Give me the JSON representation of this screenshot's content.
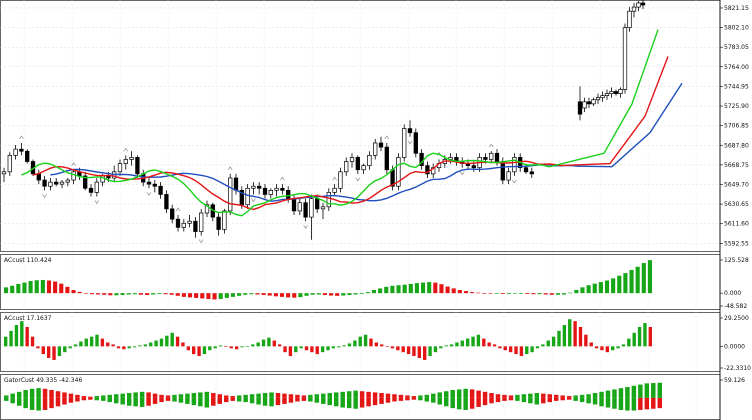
{
  "chart_data": [
    {
      "type": "candlestick",
      "pane": "main",
      "title": "",
      "y_ticks": [
        "5821.15",
        "5802.10",
        "5783.05",
        "5764.00",
        "5744.95",
        "5725.90",
        "5706.85",
        "5687.80",
        "5668.75",
        "5649.70",
        "5630.65",
        "5611.60",
        "5592.55"
      ],
      "ylim": [
        5588,
        5825
      ],
      "grid": true,
      "colors": {
        "up": "#000000",
        "down": "#000000",
        "blue": "#1f4fbf",
        "red": "#e31515",
        "green": "#19d119",
        "fractal": "#8c8c8c"
      },
      "candles": [
        [
          5660,
          5666,
          5652,
          5662
        ],
        [
          5662,
          5681,
          5658,
          5678
        ],
        [
          5678,
          5688,
          5674,
          5684
        ],
        [
          5684,
          5690,
          5678,
          5682
        ],
        [
          5682,
          5684,
          5670,
          5672
        ],
        [
          5672,
          5674,
          5658,
          5660
        ],
        [
          5660,
          5664,
          5650,
          5654
        ],
        [
          5654,
          5658,
          5644,
          5648
        ],
        [
          5648,
          5656,
          5644,
          5652
        ],
        [
          5652,
          5656,
          5648,
          5650
        ],
        [
          5650,
          5654,
          5646,
          5652
        ],
        [
          5652,
          5656,
          5648,
          5654
        ],
        [
          5654,
          5664,
          5650,
          5662
        ],
        [
          5662,
          5666,
          5654,
          5658
        ],
        [
          5658,
          5662,
          5644,
          5646
        ],
        [
          5646,
          5650,
          5638,
          5642
        ],
        [
          5642,
          5656,
          5638,
          5652
        ],
        [
          5652,
          5660,
          5648,
          5658
        ],
        [
          5658,
          5662,
          5652,
          5656
        ],
        [
          5656,
          5668,
          5652,
          5662
        ],
        [
          5662,
          5674,
          5658,
          5670
        ],
        [
          5670,
          5678,
          5664,
          5674
        ],
        [
          5674,
          5682,
          5668,
          5676
        ],
        [
          5676,
          5678,
          5656,
          5660
        ],
        [
          5660,
          5664,
          5648,
          5652
        ],
        [
          5652,
          5656,
          5646,
          5650
        ],
        [
          5650,
          5654,
          5642,
          5648
        ],
        [
          5648,
          5652,
          5636,
          5640
        ],
        [
          5640,
          5644,
          5622,
          5626
        ],
        [
          5626,
          5630,
          5612,
          5616
        ],
        [
          5616,
          5620,
          5604,
          5608
        ],
        [
          5608,
          5616,
          5604,
          5612
        ],
        [
          5612,
          5620,
          5608,
          5614
        ],
        [
          5614,
          5618,
          5598,
          5604
        ],
        [
          5604,
          5626,
          5600,
          5622
        ],
        [
          5622,
          5634,
          5618,
          5630
        ],
        [
          5630,
          5632,
          5614,
          5618
        ],
        [
          5618,
          5622,
          5600,
          5606
        ],
        [
          5606,
          5626,
          5602,
          5624
        ],
        [
          5624,
          5660,
          5620,
          5656
        ],
        [
          5656,
          5660,
          5640,
          5644
        ],
        [
          5644,
          5648,
          5626,
          5630
        ],
        [
          5630,
          5650,
          5626,
          5646
        ],
        [
          5646,
          5652,
          5640,
          5648
        ],
        [
          5648,
          5652,
          5640,
          5646
        ],
        [
          5646,
          5650,
          5636,
          5640
        ],
        [
          5640,
          5646,
          5636,
          5644
        ],
        [
          5644,
          5650,
          5638,
          5646
        ],
        [
          5646,
          5650,
          5640,
          5644
        ],
        [
          5644,
          5648,
          5632,
          5636
        ],
        [
          5636,
          5640,
          5620,
          5624
        ],
        [
          5624,
          5636,
          5620,
          5632
        ],
        [
          5632,
          5636,
          5614,
          5618
        ],
        [
          5618,
          5640,
          5596,
          5636
        ],
        [
          5636,
          5640,
          5622,
          5626
        ],
        [
          5626,
          5632,
          5616,
          5628
        ],
        [
          5628,
          5646,
          5624,
          5642
        ],
        [
          5642,
          5650,
          5638,
          5646
        ],
        [
          5646,
          5666,
          5642,
          5662
        ],
        [
          5662,
          5676,
          5658,
          5672
        ],
        [
          5672,
          5680,
          5666,
          5676
        ],
        [
          5676,
          5678,
          5660,
          5664
        ],
        [
          5664,
          5670,
          5660,
          5668
        ],
        [
          5668,
          5682,
          5664,
          5678
        ],
        [
          5678,
          5694,
          5674,
          5690
        ],
        [
          5690,
          5696,
          5682,
          5686
        ],
        [
          5686,
          5690,
          5660,
          5664
        ],
        [
          5664,
          5668,
          5644,
          5648
        ],
        [
          5648,
          5680,
          5644,
          5676
        ],
        [
          5676,
          5708,
          5672,
          5704
        ],
        [
          5704,
          5712,
          5696,
          5700
        ],
        [
          5700,
          5704,
          5676,
          5680
        ],
        [
          5680,
          5684,
          5664,
          5668
        ],
        [
          5668,
          5672,
          5656,
          5660
        ],
        [
          5660,
          5670,
          5656,
          5666
        ],
        [
          5666,
          5674,
          5662,
          5670
        ],
        [
          5670,
          5678,
          5666,
          5674
        ],
        [
          5674,
          5680,
          5670,
          5676
        ],
        [
          5676,
          5680,
          5668,
          5672
        ],
        [
          5672,
          5676,
          5666,
          5670
        ],
        [
          5670,
          5674,
          5664,
          5668
        ],
        [
          5668,
          5672,
          5662,
          5666
        ],
        [
          5666,
          5680,
          5662,
          5676
        ],
        [
          5676,
          5680,
          5670,
          5674
        ],
        [
          5674,
          5682,
          5670,
          5680
        ],
        [
          5680,
          5684,
          5668,
          5672
        ],
        [
          5672,
          5676,
          5650,
          5654
        ],
        [
          5654,
          5666,
          5650,
          5662
        ],
        [
          5662,
          5680,
          5658,
          5676
        ],
        [
          5676,
          5680,
          5662,
          5666
        ],
        [
          5666,
          5670,
          5660,
          5662
        ],
        [
          5662,
          5666,
          5656,
          5660
        ]
      ],
      "late_candles": [
        [
          5730,
          5745,
          5712,
          5718
        ],
        [
          5724,
          5734,
          5720,
          5730
        ],
        [
          5730,
          5734,
          5724,
          5728
        ],
        [
          5728,
          5734,
          5726,
          5732
        ],
        [
          5732,
          5738,
          5728,
          5734
        ],
        [
          5734,
          5740,
          5730,
          5736
        ],
        [
          5736,
          5742,
          5732,
          5738
        ],
        [
          5738,
          5744,
          5734,
          5740
        ],
        [
          5740,
          5742,
          5736,
          5738
        ],
        [
          5738,
          5744,
          5734,
          5742
        ],
        [
          5742,
          5806,
          5738,
          5802
        ],
        [
          5802,
          5822,
          5798,
          5818
        ],
        [
          5818,
          5826,
          5812,
          5822
        ],
        [
          5822,
          5828,
          5818,
          5826
        ],
        [
          5826,
          5830,
          5820,
          5824
        ]
      ]
    },
    {
      "type": "histogram",
      "pane": "indicator-1",
      "title": "ACcust 110.424",
      "y_ticks": [
        "125.528",
        "0.000",
        "-48.582"
      ],
      "ylim": [
        -48.582,
        125.528
      ],
      "colors": {
        "up": "#17a617",
        "down": "#e31515"
      },
      "values": [
        22,
        28,
        35,
        40,
        46,
        49,
        50,
        48,
        44,
        36,
        24,
        12,
        5,
        -2,
        -4,
        -5,
        -6,
        -8,
        -8,
        -7,
        -5,
        -4,
        -6,
        -7,
        -5,
        -3,
        -4,
        -6,
        -10,
        -14,
        -16,
        -18,
        -20,
        -22,
        -24,
        -22,
        -18,
        -14,
        -10,
        -6,
        -4,
        -5,
        -7,
        -9,
        -12,
        -14,
        -16,
        -17,
        -15,
        -10,
        -6,
        -5,
        -7,
        -9,
        -10,
        -9,
        -7,
        -5,
        -3,
        4,
        12,
        18,
        24,
        28,
        30,
        32,
        35,
        38,
        40,
        42,
        40,
        34,
        25,
        18,
        12,
        8,
        4,
        2,
        0,
        -2,
        -2,
        -3,
        -3,
        -2,
        -2,
        -3,
        -4,
        -4,
        -5,
        -6,
        -6,
        -5,
        2,
        12,
        22,
        30,
        36,
        42,
        48,
        56,
        66,
        76,
        88,
        100,
        114,
        125
      ]
    },
    {
      "type": "histogram",
      "pane": "indicator-2",
      "title": "ACcust 17.1637",
      "y_ticks": [
        "29.2500",
        "0.0000",
        "-22.3310"
      ],
      "ylim": [
        -22.331,
        29.25
      ],
      "colors": {
        "up": "#17a617",
        "down": "#e31515"
      },
      "values": [
        10,
        16,
        22,
        26,
        20,
        10,
        -2,
        -8,
        -12,
        -14,
        -10,
        -6,
        -2,
        2,
        5,
        8,
        10,
        12,
        8,
        4,
        2,
        -2,
        -3,
        -2,
        -1,
        1,
        2,
        4,
        6,
        8,
        11,
        14,
        10,
        4,
        -4,
        -8,
        -10,
        -8,
        -4,
        -2,
        1,
        0,
        -2,
        -3,
        -1,
        0,
        2,
        4,
        7,
        9,
        6,
        2,
        -6,
        -10,
        -6,
        -2,
        -4,
        -6,
        -8,
        -6,
        -4,
        -2,
        -1,
        1,
        3,
        6,
        10,
        12,
        8,
        4,
        2,
        0,
        -2,
        -4,
        -6,
        -8,
        -10,
        -12,
        -14,
        -10,
        -6,
        -2,
        1,
        2,
        4,
        6,
        8,
        10,
        12,
        8,
        4,
        2,
        -2,
        -4,
        -6,
        -8,
        -10,
        -8,
        -6,
        -2,
        2,
        6,
        10,
        16,
        22,
        28,
        26,
        20,
        12,
        4,
        -2,
        -4,
        -6,
        -4,
        -2,
        2,
        8,
        14,
        20,
        24,
        20
      ]
    },
    {
      "type": "histogram",
      "pane": "indicator-3",
      "title": "GatorCust 49.335 -42.346",
      "y_ticks": [
        "59.126"
      ],
      "ylim": [
        -60,
        59.126
      ],
      "colors": {
        "up": "#17a617",
        "down": "#e31515"
      },
      "upper": [
        8,
        14,
        20,
        26,
        30,
        32,
        30,
        26,
        22,
        18,
        14,
        10,
        6,
        4,
        6,
        8,
        10,
        12,
        14,
        16,
        18,
        20,
        18,
        14,
        10,
        8,
        10,
        12,
        14,
        16,
        18,
        20,
        16,
        12,
        8,
        6,
        8,
        10,
        12,
        14,
        16,
        18,
        16,
        14,
        12,
        10,
        8,
        10,
        12,
        14,
        16,
        18,
        20,
        22,
        24,
        22,
        20,
        18,
        16,
        14,
        12,
        10,
        8,
        6,
        8,
        10,
        14,
        18,
        22,
        26,
        28,
        30,
        28,
        24,
        20,
        16,
        12,
        10,
        8,
        10,
        12,
        14,
        16,
        14,
        12,
        10,
        8,
        6,
        8,
        10,
        12,
        16,
        20,
        24,
        28,
        32,
        36,
        40,
        44,
        48,
        49,
        50
      ],
      "lower": [
        -10,
        -18,
        -26,
        -34,
        -40,
        -42,
        -40,
        -34,
        -28,
        -22,
        -16,
        -12,
        -8,
        -6,
        -8,
        -10,
        -14,
        -18,
        -22,
        -26,
        -28,
        -30,
        -26,
        -20,
        -14,
        -10,
        -12,
        -16,
        -20,
        -24,
        -28,
        -32,
        -26,
        -20,
        -14,
        -10,
        -12,
        -14,
        -18,
        -22,
        -26,
        -28,
        -24,
        -20,
        -16,
        -12,
        -10,
        -12,
        -16,
        -20,
        -24,
        -28,
        -32,
        -34,
        -36,
        -32,
        -28,
        -24,
        -20,
        -16,
        -12,
        -10,
        -8,
        -6,
        -8,
        -12,
        -16,
        -22,
        -28,
        -34,
        -38,
        -40,
        -36,
        -30,
        -24,
        -18,
        -14,
        -10,
        -8,
        -10,
        -14,
        -18,
        -22,
        -18,
        -14,
        -10,
        -8,
        -6,
        -10,
        -14,
        -18,
        -22,
        -28,
        -32,
        -36,
        -40,
        -42,
        -42,
        -40,
        -38,
        -36,
        -34
      ]
    }
  ]
}
